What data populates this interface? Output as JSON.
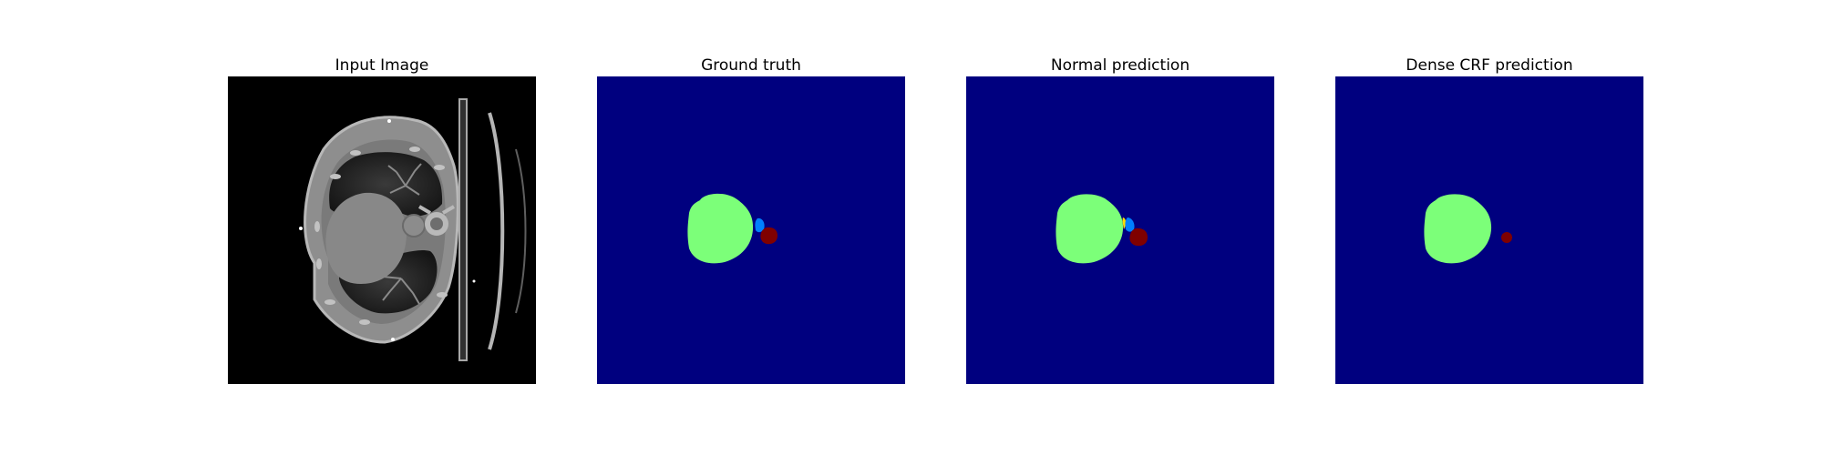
{
  "figure": {
    "panels": [
      {
        "title": "Input Image"
      },
      {
        "title": "Ground truth"
      },
      {
        "title": "Normal prediction"
      },
      {
        "title": "Dense CRF prediction"
      }
    ]
  },
  "colors": {
    "background_class": "#00007f",
    "large_region": "#7cff79",
    "small_region": "#7f0000",
    "thin_region": "#0080ff",
    "boundary_artifact": "#ffdd00"
  }
}
